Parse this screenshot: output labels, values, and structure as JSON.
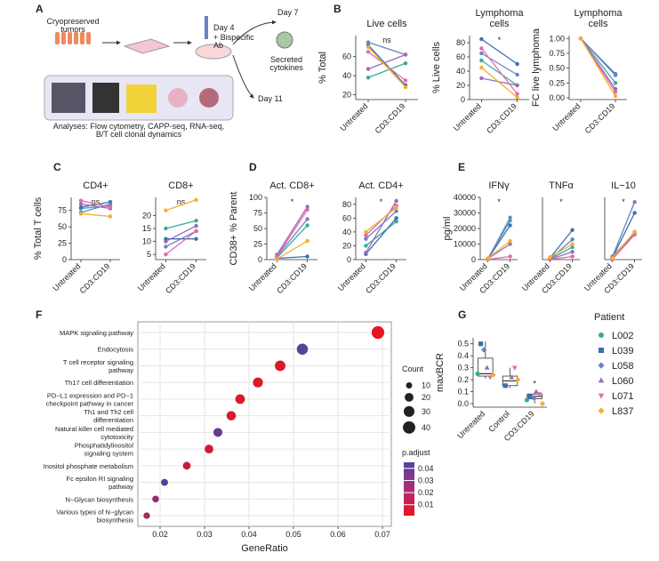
{
  "panel_labels": [
    "A",
    "B",
    "C",
    "D",
    "E",
    "F",
    "G"
  ],
  "panel_a": {
    "tumors": "Cryopreserved\ntumors",
    "day4": "Day 4",
    "bispecific": "+ Bispecific\nAb",
    "day7": "Day 7",
    "cytokines": "Secreted\ncytokines",
    "day11": "Day 11",
    "analyses": "Analyses: Flow cytometry, CAPP-seq, RNA-seq,\nB/T cell clonal dynamics"
  },
  "chart_data": [
    {
      "type": "line",
      "title": "Live cells",
      "ylabel": "% Total",
      "categories": [
        "Untreated",
        "CD3:CD19"
      ],
      "ylim": [
        15,
        82
      ],
      "yticks": [
        20,
        40,
        60
      ],
      "annotation": "ns",
      "series": [
        {
          "color": "#3aa99f",
          "values": [
            38,
            53
          ]
        },
        {
          "color": "#3a6fb0",
          "values": [
            72,
            30
          ]
        },
        {
          "color": "#6b82c4",
          "values": [
            75,
            62
          ]
        },
        {
          "color": "#9a6bb8",
          "values": [
            47,
            62
          ]
        },
        {
          "color": "#e36aa8",
          "values": [
            65,
            35
          ]
        },
        {
          "color": "#f2b02a",
          "values": [
            70,
            28
          ]
        }
      ]
    },
    {
      "type": "line",
      "title": "Lymphoma\ncells",
      "ylabel": "% Live cells",
      "categories": [
        "Untreated",
        "CD3:CD19"
      ],
      "ylim": [
        0,
        90
      ],
      "yticks": [
        0,
        20,
        40,
        60,
        80
      ],
      "annotation": "*",
      "series": [
        {
          "color": "#3aa99f",
          "values": [
            55,
            20
          ]
        },
        {
          "color": "#3a6fb0",
          "values": [
            85,
            50
          ]
        },
        {
          "color": "#6b82c4",
          "values": [
            65,
            35
          ]
        },
        {
          "color": "#9a6bb8",
          "values": [
            30,
            20
          ]
        },
        {
          "color": "#e36aa8",
          "values": [
            72,
            8
          ]
        },
        {
          "color": "#f2b02a",
          "values": [
            45,
            3
          ]
        }
      ]
    },
    {
      "type": "line",
      "title": "Lymphoma\ncells",
      "ylabel": "FC live lymphoma",
      "categories": [
        "Untreated",
        "CD3:CD19"
      ],
      "ylim": [
        -0.03,
        1.05
      ],
      "yticks": [
        {
          "value": 0,
          "label": "0.00"
        },
        0.25,
        {
          "value": 0.5,
          "label": "0.50"
        },
        0.75,
        {
          "value": 1,
          "label": "1.00"
        }
      ],
      "series": [
        {
          "color": "#3aa99f",
          "values": [
            1,
            0.25
          ]
        },
        {
          "color": "#3a6fb0",
          "values": [
            1,
            0.4
          ]
        },
        {
          "color": "#6b82c4",
          "values": [
            1,
            0.38
          ]
        },
        {
          "color": "#9a6bb8",
          "values": [
            1,
            0.15
          ]
        },
        {
          "color": "#e36aa8",
          "values": [
            1,
            0.1
          ]
        },
        {
          "color": "#f2b02a",
          "values": [
            1,
            0.03
          ]
        }
      ]
    },
    {
      "type": "line",
      "title": "CD4+",
      "ylabel": "% Total T cells",
      "categories": [
        "Untreated",
        "CD3:CD19"
      ],
      "ylim": [
        0,
        95
      ],
      "yticks": [
        0,
        25,
        50,
        75
      ],
      "annotation": "ns",
      "series": [
        {
          "color": "#3aa99f",
          "values": [
            78,
            82
          ]
        },
        {
          "color": "#3a6fb0",
          "values": [
            80,
            88
          ]
        },
        {
          "color": "#6b82c4",
          "values": [
            72,
            85
          ]
        },
        {
          "color": "#9a6bb8",
          "values": [
            85,
            78
          ]
        },
        {
          "color": "#e36aa8",
          "values": [
            90,
            80
          ]
        },
        {
          "color": "#f2b02a",
          "values": [
            70,
            66
          ]
        }
      ]
    },
    {
      "type": "line",
      "title": "CD8+",
      "categories": [
        "Untreated",
        "CD3:CD19"
      ],
      "ylim": [
        3,
        27
      ],
      "yticks": [
        5,
        10,
        15,
        20
      ],
      "annotation": "ns",
      "series": [
        {
          "color": "#3aa99f",
          "values": [
            15,
            18
          ]
        },
        {
          "color": "#3a6fb0",
          "values": [
            11,
            11
          ]
        },
        {
          "color": "#6b82c4",
          "values": [
            8,
            14
          ]
        },
        {
          "color": "#9a6bb8",
          "values": [
            10,
            16
          ]
        },
        {
          "color": "#e36aa8",
          "values": [
            5,
            14
          ]
        },
        {
          "color": "#f2b02a",
          "values": [
            22,
            26
          ]
        }
      ]
    },
    {
      "type": "line",
      "title": "Act. CD8+",
      "ylabel": "CD38+ % Parent",
      "categories": [
        "Untreated",
        "CD3:CD19"
      ],
      "ylim": [
        0,
        100
      ],
      "yticks": [
        0,
        25,
        50,
        75,
        100
      ],
      "annotation": "*",
      "series": [
        {
          "color": "#3aa99f",
          "values": [
            3,
            55
          ]
        },
        {
          "color": "#3a6fb0",
          "values": [
            2,
            5
          ]
        },
        {
          "color": "#6b82c4",
          "values": [
            5,
            65
          ]
        },
        {
          "color": "#9a6bb8",
          "values": [
            8,
            85
          ]
        },
        {
          "color": "#e36aa8",
          "values": [
            5,
            80
          ]
        },
        {
          "color": "#f2b02a",
          "values": [
            1,
            30
          ]
        }
      ]
    },
    {
      "type": "line",
      "title": "Act. CD4+",
      "categories": [
        "Untreated",
        "CD3:CD19"
      ],
      "ylim": [
        0,
        90
      ],
      "yticks": [
        0,
        20,
        40,
        60,
        80
      ],
      "annotation": "*",
      "series": [
        {
          "color": "#3aa99f",
          "values": [
            20,
            55
          ]
        },
        {
          "color": "#3a6fb0",
          "values": [
            8,
            60
          ]
        },
        {
          "color": "#6b82c4",
          "values": [
            30,
            70
          ]
        },
        {
          "color": "#9a6bb8",
          "values": [
            10,
            85
          ]
        },
        {
          "color": "#e36aa8",
          "values": [
            35,
            78
          ]
        },
        {
          "color": "#f2b02a",
          "values": [
            40,
            75
          ]
        }
      ]
    },
    {
      "type": "line",
      "title": "IFNγ",
      "ylabel": "pg/ml",
      "categories": [
        "Untreated",
        "CD3:CD19"
      ],
      "ylim": [
        0,
        40000
      ],
      "yticks": [
        0,
        10000,
        20000,
        30000,
        40000
      ],
      "annotation": "*",
      "series": [
        {
          "color": "#3aa99f",
          "values": [
            500,
            25000
          ]
        },
        {
          "color": "#3a6fb0",
          "values": [
            300,
            22000
          ]
        },
        {
          "color": "#6b82c4",
          "values": [
            200,
            27000
          ]
        },
        {
          "color": "#9a6bb8",
          "values": [
            500,
            10000
          ]
        },
        {
          "color": "#e36aa8",
          "values": [
            100,
            2000
          ]
        },
        {
          "color": "#f2b02a",
          "values": [
            800,
            12000
          ]
        }
      ]
    },
    {
      "type": "line",
      "title": "TNFα",
      "categories": [
        "Untreated",
        "CD3:CD19"
      ],
      "ylim": [
        0,
        40000
      ],
      "annotation": "*",
      "series": [
        {
          "color": "#3aa99f",
          "values": [
            500,
            8000
          ]
        },
        {
          "color": "#3a6fb0",
          "values": [
            1000,
            19000
          ]
        },
        {
          "color": "#6b82c4",
          "values": [
            300,
            13000
          ]
        },
        {
          "color": "#9a6bb8",
          "values": [
            200,
            5000
          ]
        },
        {
          "color": "#e36aa8",
          "values": [
            100,
            2000
          ]
        },
        {
          "color": "#f2b02a",
          "values": [
            1500,
            10000
          ]
        }
      ]
    },
    {
      "type": "line",
      "title": "IL−10",
      "categories": [
        "Untreated",
        "CD3:CD19"
      ],
      "ylim": [
        0,
        40000
      ],
      "annotation": "*",
      "series": [
        {
          "color": "#3aa99f",
          "values": [
            2000,
            17000
          ]
        },
        {
          "color": "#3a6fb0",
          "values": [
            1000,
            30000
          ]
        },
        {
          "color": "#6b82c4",
          "values": [
            1500,
            37000
          ]
        },
        {
          "color": "#9a6bb8",
          "values": [
            500,
            17000
          ]
        },
        {
          "color": "#e36aa8",
          "values": [
            0,
            16000
          ]
        },
        {
          "color": "#f2b02a",
          "values": [
            1000,
            18000
          ]
        }
      ]
    },
    {
      "type": "dot",
      "xlabel": "GeneRatio",
      "xlim": [
        0.015,
        0.072
      ],
      "xticks": [
        0.02,
        0.03,
        0.04,
        0.05,
        0.06,
        0.07
      ],
      "grid": true,
      "categories": [
        "MAPK signaling pathway",
        "Endocytosis",
        "T cell receptor signaling\npathway",
        "Th17 cell differentiation",
        "PD−L1 expression and PD−1\ncheckpoint pathway in cancer",
        "Th1 and Th2 cell\ndifferentiation",
        "Natural killer cell mediated\ncytotoxicity",
        "Phosphatidylinositol\nsignaling system",
        "Inositol phosphate metabolism",
        "Fc epsilon RI signaling\npathway",
        "N−Glycan biosynthesis",
        "Various types of N−glycan\nbiosynthesis"
      ],
      "values": [
        0.069,
        0.052,
        0.047,
        0.042,
        0.038,
        0.036,
        0.033,
        0.031,
        0.026,
        0.021,
        0.019,
        0.017
      ],
      "sizes": [
        42,
        32,
        29,
        26,
        24,
        23,
        21,
        20,
        16,
        13,
        12,
        11
      ],
      "colors_value": [
        0.001,
        0.042,
        0.005,
        0.005,
        0.005,
        0.005,
        0.037,
        0.008,
        0.008,
        0.04,
        0.025,
        0.022
      ],
      "size_legend_title": "Count",
      "size_legend": [
        10,
        20,
        30,
        40
      ],
      "color_legend_title": "p.adjust",
      "clim": [
        0.001,
        0.045
      ],
      "cticks": [
        0.01,
        0.02,
        0.03,
        0.04
      ],
      "color_low": "#e8141e",
      "color_high": "#4a46a0"
    },
    {
      "type": "box",
      "ylabel": "maxBCR",
      "categories": [
        "Untreated",
        "Control",
        "CD3:CD19"
      ],
      "ylim": [
        -0.03,
        0.55
      ],
      "yticks": [
        {
          "value": 0,
          "label": "0.0"
        },
        0.1,
        0.2,
        0.3,
        0.4,
        0.5
      ],
      "annotation": "*",
      "boxes": [
        {
          "low": 0.21,
          "q1": 0.23,
          "median": 0.25,
          "q3": 0.38,
          "high": 0.52
        },
        {
          "low": 0.13,
          "q1": 0.15,
          "median": 0.19,
          "q3": 0.23,
          "high": 0.3
        },
        {
          "low": 0.0,
          "q1": 0.04,
          "median": 0.06,
          "q3": 0.08,
          "high": 0.1
        }
      ],
      "legend_title": "Patient",
      "series": [
        {
          "name": "L002",
          "color": "#3aa99f",
          "marker": "circle",
          "values": [
            0.25,
            null,
            0.03
          ]
        },
        {
          "name": "L039",
          "color": "#3a6fb0",
          "marker": "square",
          "values": [
            0.5,
            0.15,
            0.06
          ]
        },
        {
          "name": "L058",
          "color": "#6b82c4",
          "marker": "diamond",
          "values": [
            0.45,
            null,
            0.05
          ]
        },
        {
          "name": "L060",
          "color": "#9a6bb8",
          "marker": "triangle",
          "values": [
            0.3,
            0.22,
            0.1
          ]
        },
        {
          "name": "L071",
          "color": "#e36aa8",
          "marker": "triangle-down",
          "values": [
            0.22,
            0.3,
            0.08
          ]
        },
        {
          "name": "L837",
          "color": "#f2b02a",
          "marker": "diamond",
          "values": [
            0.24,
            0.2,
            0.0
          ]
        }
      ]
    }
  ]
}
